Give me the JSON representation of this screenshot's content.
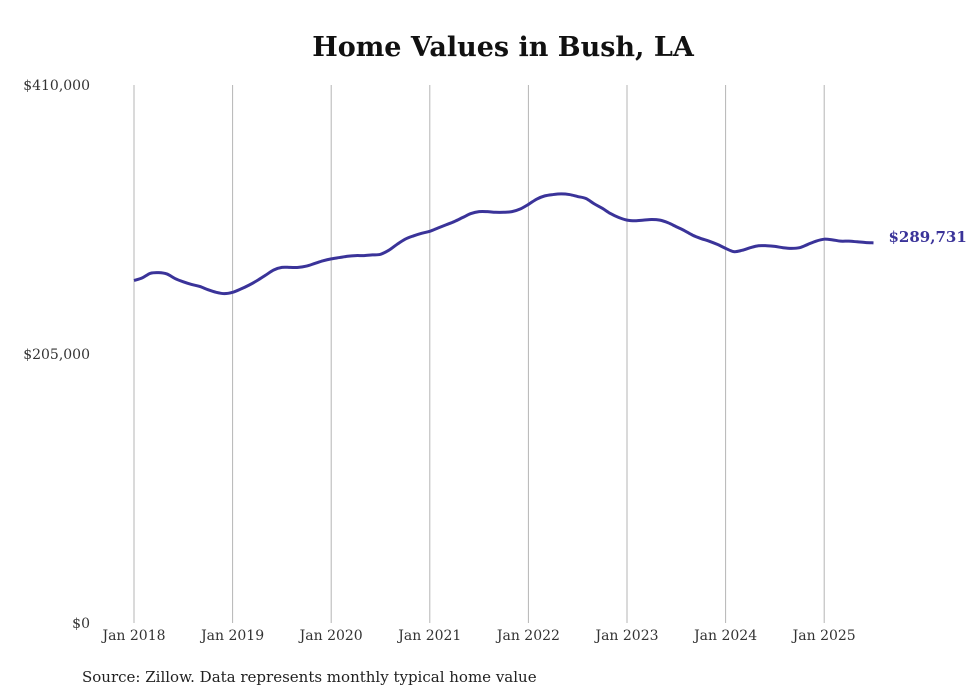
{
  "chart_data": {
    "type": "line",
    "title": "Home Values in Bush, LA",
    "source": "Source: Zillow. Data represents monthly typical home value",
    "xlabel": "",
    "ylabel": "",
    "ylim": [
      0,
      410000
    ],
    "yticks": [
      0,
      205000,
      410000
    ],
    "ytick_labels": [
      "$0",
      "$205,000",
      "$410,000"
    ],
    "xticks": [
      "Jan 2018",
      "Jan 2019",
      "Jan 2020",
      "Jan 2021",
      "Jan 2022",
      "Jan 2023",
      "Jan 2024",
      "Jan 2025"
    ],
    "grid": "vertical",
    "line_color": "#3a3399",
    "end_label": "$289,731",
    "series": [
      {
        "name": "Home value",
        "points": [
          [
            "2018-01",
            261000
          ],
          [
            "2018-02",
            263000
          ],
          [
            "2018-03",
            266500
          ],
          [
            "2018-04",
            267000
          ],
          [
            "2018-05",
            266000
          ],
          [
            "2018-06",
            262500
          ],
          [
            "2018-07",
            260000
          ],
          [
            "2018-08",
            258000
          ],
          [
            "2018-09",
            256500
          ],
          [
            "2018-10",
            254000
          ],
          [
            "2018-11",
            252000
          ],
          [
            "2018-12",
            251000
          ],
          [
            "2019-01",
            252000
          ],
          [
            "2019-02",
            254500
          ],
          [
            "2019-03",
            257500
          ],
          [
            "2019-04",
            261000
          ],
          [
            "2019-05",
            265000
          ],
          [
            "2019-06",
            269000
          ],
          [
            "2019-07",
            271000
          ],
          [
            "2019-08",
            271000
          ],
          [
            "2019-09",
            271000
          ],
          [
            "2019-10",
            272000
          ],
          [
            "2019-11",
            274000
          ],
          [
            "2019-12",
            276000
          ],
          [
            "2020-01",
            277500
          ],
          [
            "2020-02",
            278500
          ],
          [
            "2020-03",
            279500
          ],
          [
            "2020-04",
            280000
          ],
          [
            "2020-05",
            280000
          ],
          [
            "2020-06",
            280500
          ],
          [
            "2020-07",
            281000
          ],
          [
            "2020-08",
            284000
          ],
          [
            "2020-09",
            288500
          ],
          [
            "2020-10",
            292500
          ],
          [
            "2020-11",
            295000
          ],
          [
            "2020-12",
            297000
          ],
          [
            "2021-01",
            298500
          ],
          [
            "2021-02",
            301000
          ],
          [
            "2021-03",
            303500
          ],
          [
            "2021-04",
            306000
          ],
          [
            "2021-05",
            309000
          ],
          [
            "2021-06",
            312000
          ],
          [
            "2021-07",
            313500
          ],
          [
            "2021-08",
            313500
          ],
          [
            "2021-09",
            313000
          ],
          [
            "2021-10",
            313000
          ],
          [
            "2021-11",
            313500
          ],
          [
            "2021-12",
            315500
          ],
          [
            "2022-01",
            319000
          ],
          [
            "2022-02",
            323000
          ],
          [
            "2022-03",
            325500
          ],
          [
            "2022-04",
            326500
          ],
          [
            "2022-05",
            327000
          ],
          [
            "2022-06",
            326500
          ],
          [
            "2022-07",
            325000
          ],
          [
            "2022-08",
            323500
          ],
          [
            "2022-09",
            319500
          ],
          [
            "2022-10",
            316000
          ],
          [
            "2022-11",
            312000
          ],
          [
            "2022-12",
            309000
          ],
          [
            "2023-01",
            307000
          ],
          [
            "2023-02",
            306500
          ],
          [
            "2023-03",
            307000
          ],
          [
            "2023-04",
            307500
          ],
          [
            "2023-05",
            307000
          ],
          [
            "2023-06",
            305000
          ],
          [
            "2023-07",
            302000
          ],
          [
            "2023-08",
            299000
          ],
          [
            "2023-09",
            295500
          ],
          [
            "2023-10",
            293000
          ],
          [
            "2023-11",
            291000
          ],
          [
            "2023-12",
            288500
          ],
          [
            "2024-01",
            285500
          ],
          [
            "2024-02",
            283000
          ],
          [
            "2024-03",
            284000
          ],
          [
            "2024-04",
            286000
          ],
          [
            "2024-05",
            287500
          ],
          [
            "2024-06",
            287500
          ],
          [
            "2024-07",
            287000
          ],
          [
            "2024-08",
            286000
          ],
          [
            "2024-09",
            285500
          ],
          [
            "2024-10",
            286000
          ],
          [
            "2024-11",
            288500
          ],
          [
            "2024-12",
            291000
          ],
          [
            "2025-01",
            292500
          ],
          [
            "2025-02",
            292000
          ],
          [
            "2025-03",
            291000
          ],
          [
            "2025-04",
            291000
          ],
          [
            "2025-05",
            290500
          ],
          [
            "2025-06",
            290000
          ],
          [
            "2025-07",
            289731
          ]
        ]
      }
    ]
  }
}
